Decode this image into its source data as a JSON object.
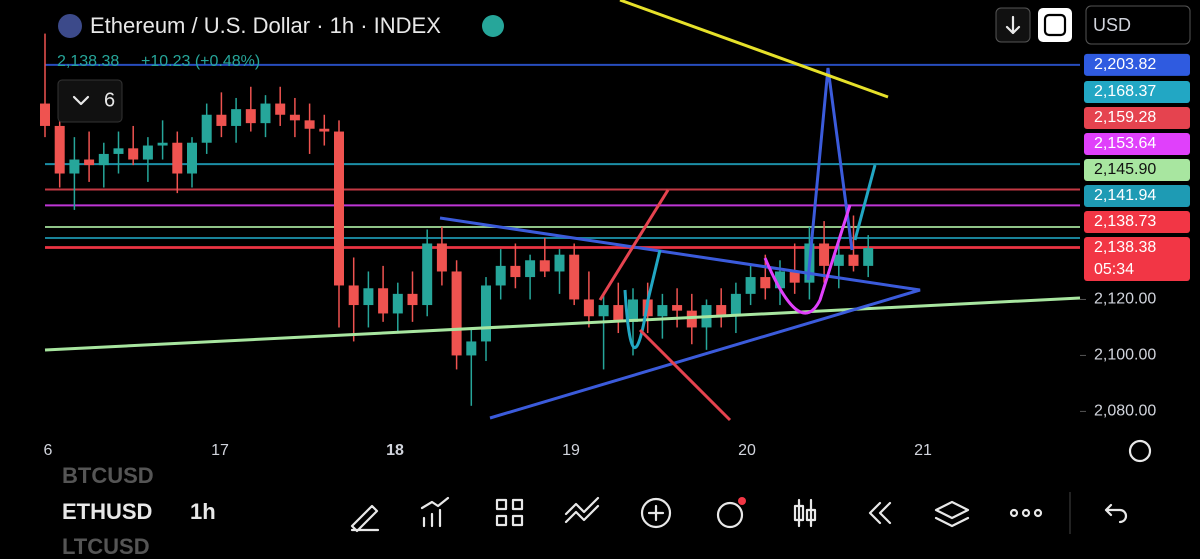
{
  "header": {
    "title": "Ethereum / U.S. Dollar · 1h · INDEX",
    "quote": "2,138.38",
    "change": "+10.23 (+0.48%)",
    "indicators_count": "6",
    "currency": "USD"
  },
  "chart": {
    "ylim": [
      2227,
      2073
    ],
    "yticks": [
      {
        "value": 2120,
        "label": "2,120.00"
      },
      {
        "value": 2100,
        "label": "2,100.00"
      },
      {
        "value": 2080,
        "label": "2,080.00"
      }
    ],
    "dates": [
      "6",
      "17",
      "18",
      "19",
      "20",
      "21"
    ],
    "up_color": "#26a69a",
    "down_color": "#ef5350",
    "price_lines": [
      {
        "value": 2203.82,
        "label": "2,203.82",
        "color": "#2f5be0"
      },
      {
        "value": 2168.37,
        "label": "2,168.37",
        "color": "#22a7c4"
      },
      {
        "value": 2159.28,
        "label": "2,159.28",
        "color": "#e5434f"
      },
      {
        "value": 2153.64,
        "label": "2,153.64",
        "color": "#e040fb"
      },
      {
        "value": 2145.9,
        "label": "2,145.90",
        "color": "#a8e6a0",
        "text_color": "#111"
      },
      {
        "value": 2141.94,
        "label": "2,141.94",
        "color": "#1e9bb4"
      },
      {
        "value": 2138.73,
        "label": "2,138.73",
        "color": "#f23645"
      },
      {
        "value": 2138.38,
        "label": "2,138.38",
        "color": "#f23645",
        "countdown": "05:34"
      }
    ],
    "candles": [
      [
        2190,
        2215,
        2178,
        2182
      ],
      [
        2182,
        2195,
        2160,
        2165
      ],
      [
        2165,
        2178,
        2152,
        2170
      ],
      [
        2170,
        2180,
        2162,
        2168
      ],
      [
        2168,
        2176,
        2160,
        2172
      ],
      [
        2172,
        2180,
        2165,
        2174
      ],
      [
        2174,
        2182,
        2168,
        2170
      ],
      [
        2170,
        2178,
        2162,
        2175
      ],
      [
        2175,
        2184,
        2170,
        2176
      ],
      [
        2176,
        2180,
        2158,
        2165
      ],
      [
        2165,
        2178,
        2160,
        2176
      ],
      [
        2176,
        2190,
        2172,
        2186
      ],
      [
        2186,
        2194,
        2178,
        2182
      ],
      [
        2182,
        2192,
        2176,
        2188
      ],
      [
        2188,
        2196,
        2180,
        2183
      ],
      [
        2183,
        2193,
        2178,
        2190
      ],
      [
        2190,
        2196,
        2182,
        2186
      ],
      [
        2186,
        2192,
        2178,
        2184
      ],
      [
        2184,
        2190,
        2172,
        2181
      ],
      [
        2181,
        2186,
        2175,
        2180
      ],
      [
        2180,
        2184,
        2110,
        2125
      ],
      [
        2125,
        2135,
        2105,
        2118
      ],
      [
        2118,
        2130,
        2110,
        2124
      ],
      [
        2124,
        2132,
        2112,
        2115
      ],
      [
        2115,
        2126,
        2108,
        2122
      ],
      [
        2122,
        2130,
        2112,
        2118
      ],
      [
        2118,
        2145,
        2114,
        2140
      ],
      [
        2140,
        2146,
        2125,
        2130
      ],
      [
        2130,
        2134,
        2095,
        2100
      ],
      [
        2100,
        2110,
        2082,
        2105
      ],
      [
        2105,
        2128,
        2098,
        2125
      ],
      [
        2125,
        2138,
        2120,
        2132
      ],
      [
        2132,
        2140,
        2124,
        2128
      ],
      [
        2128,
        2136,
        2120,
        2134
      ],
      [
        2134,
        2142,
        2128,
        2130
      ],
      [
        2130,
        2138,
        2122,
        2136
      ],
      [
        2136,
        2140,
        2118,
        2120
      ],
      [
        2120,
        2130,
        2110,
        2114
      ],
      [
        2114,
        2122,
        2095,
        2118
      ],
      [
        2118,
        2126,
        2108,
        2112
      ],
      [
        2112,
        2124,
        2100,
        2120
      ],
      [
        2120,
        2126,
        2108,
        2114
      ],
      [
        2114,
        2122,
        2106,
        2118
      ],
      [
        2118,
        2124,
        2110,
        2116
      ],
      [
        2116,
        2122,
        2104,
        2110
      ],
      [
        2110,
        2120,
        2102,
        2118
      ],
      [
        2118,
        2124,
        2110,
        2114
      ],
      [
        2114,
        2126,
        2108,
        2122
      ],
      [
        2122,
        2132,
        2118,
        2128
      ],
      [
        2128,
        2136,
        2120,
        2124
      ],
      [
        2124,
        2134,
        2118,
        2130
      ],
      [
        2130,
        2140,
        2122,
        2126
      ],
      [
        2126,
        2146,
        2120,
        2140
      ],
      [
        2140,
        2148,
        2126,
        2132
      ],
      [
        2132,
        2142,
        2124,
        2136
      ],
      [
        2136,
        2150,
        2130,
        2132
      ],
      [
        2132,
        2143,
        2128,
        2138.38
      ]
    ]
  },
  "symbols": {
    "previous": "BTCUSD",
    "current": "ETHUSD",
    "interval": "1h",
    "next": "LTCUSD"
  }
}
